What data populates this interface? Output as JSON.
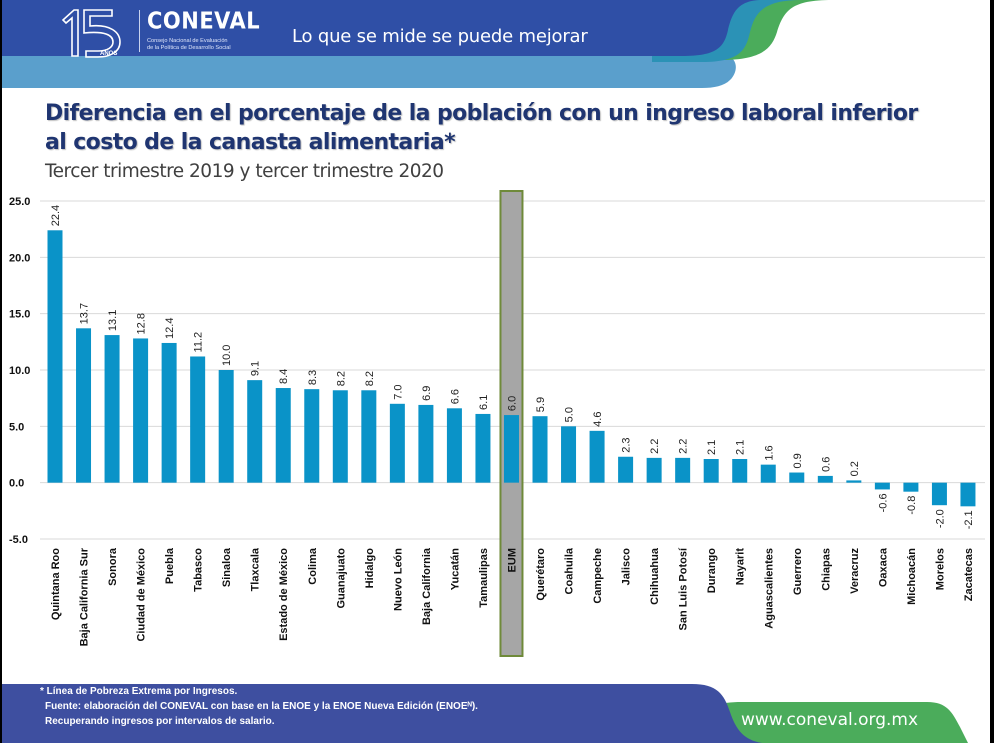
{
  "header": {
    "logo_number": "15",
    "logo_years": "AÑOS",
    "logo_brand": "CONEVAL",
    "logo_subtitle_line1": "Consejo Nacional de Evaluación",
    "logo_subtitle_line2": "de la Política de Desarrollo Social",
    "slogan": "Lo que se mide se puede mejorar"
  },
  "colors": {
    "header_blue": "#2f4fa6",
    "header_lightblue": "#4f97c6",
    "header_teal": "#2b92b6",
    "header_green": "#4bac5b",
    "bar": "#0a93c8",
    "highlight_fill": "#a6a6a6",
    "highlight_border": "#6f8a3a",
    "title": "#1f3571"
  },
  "chart_data": {
    "type": "bar",
    "title": "Diferencia en el porcentaje de la población con un ingreso laboral inferior al costo de la canasta alimentaria*",
    "subtitle": "Tercer trimestre 2019 y tercer trimestre 2020",
    "xlabel": "",
    "ylabel": "",
    "ylim": [
      -5.0,
      25.0
    ],
    "yticks": [
      "25.0",
      "20.0",
      "15.0",
      "10.0",
      "5.0",
      "0.0",
      "-5.0"
    ],
    "ytick_values": [
      25,
      20,
      15,
      10,
      5,
      0,
      -5
    ],
    "grid": true,
    "highlight_category": "EUM",
    "categories": [
      "Quintana Roo",
      "Baja California Sur",
      "Sonora",
      "Ciudad de México",
      "Puebla",
      "Tabasco",
      "Sinaloa",
      "Tlaxcala",
      "Estado de México",
      "Colima",
      "Guanajuato",
      "Hidalgo",
      "Nuevo León",
      "Baja California",
      "Yucatán",
      "Tamaulipas",
      "EUM",
      "Querétaro",
      "Coahuila",
      "Campeche",
      "Jalisco",
      "Chihuahua",
      "San Luis Potosí",
      "Durango",
      "Nayarit",
      "Aguascalientes",
      "Guerrero",
      "Chiapas",
      "Veracruz",
      "Oaxaca",
      "Michoacán",
      "Morelos",
      "Zacatecas"
    ],
    "values": [
      22.4,
      13.7,
      13.1,
      12.8,
      12.4,
      11.2,
      10.0,
      9.1,
      8.4,
      8.3,
      8.2,
      8.2,
      7.0,
      6.9,
      6.6,
      6.1,
      6.0,
      5.9,
      5.0,
      4.6,
      2.3,
      2.2,
      2.2,
      2.1,
      2.1,
      1.6,
      0.9,
      0.6,
      0.2,
      -0.6,
      -0.8,
      -2.0,
      -2.1
    ],
    "value_labels": [
      "22.4",
      "13.7",
      "13.1",
      "12.8",
      "12.4",
      "11.2",
      "10.0",
      "9.1",
      "8.4",
      "8.3",
      "8.2",
      "8.2",
      "7.0",
      "6.9",
      "6.6",
      "6.1",
      "6.0",
      "5.9",
      "5.0",
      "4.6",
      "2.3",
      "2.2",
      "2.2",
      "2.1",
      "2.1",
      "1.6",
      "0.9",
      "0.6",
      "0.2",
      "-0.6",
      "-0.8",
      "-2.0",
      "-2.1"
    ]
  },
  "footer": {
    "note": "* Línea de Pobreza Extrema por Ingresos.",
    "source": "Fuente: elaboración del CONEVAL con base en la ENOE y la ENOE Nueva Edición (ENOEᴺ).",
    "method": "Recuperando ingresos  por intervalos de salario.",
    "website": "www.coneval.org.mx"
  }
}
